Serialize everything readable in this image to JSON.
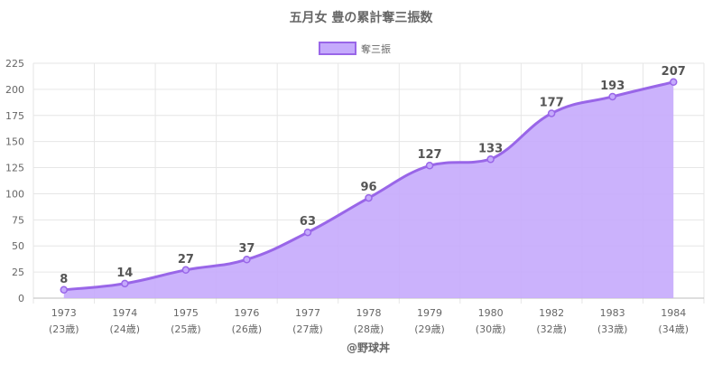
{
  "chart_data": {
    "type": "area",
    "title": "五月女 豊の累計奪三振数",
    "legend": {
      "label": "奪三振",
      "position": "top"
    },
    "categories": [
      "1973",
      "1974",
      "1975",
      "1976",
      "1977",
      "1978",
      "1979",
      "1980",
      "1982",
      "1983",
      "1984"
    ],
    "age_labels": [
      "(23歳)",
      "(24歳)",
      "(25歳)",
      "(26歳)",
      "(27歳)",
      "(28歳)",
      "(29歳)",
      "(30歳)",
      "(32歳)",
      "(33歳)",
      "(34歳)"
    ],
    "series": [
      {
        "name": "奪三振",
        "values": [
          8,
          14,
          27,
          37,
          63,
          96,
          127,
          133,
          177,
          193,
          207
        ]
      }
    ],
    "ylim": [
      0,
      225
    ],
    "yticks": [
      0,
      25,
      50,
      75,
      100,
      125,
      150,
      175,
      200,
      225
    ],
    "grid": true,
    "colors": {
      "line": "#9966e8",
      "fill": "#c5aafc",
      "grid": "#e6e6e6",
      "axis_text": "#666666",
      "label_text": "#555555"
    },
    "footer": "@野球丼"
  }
}
